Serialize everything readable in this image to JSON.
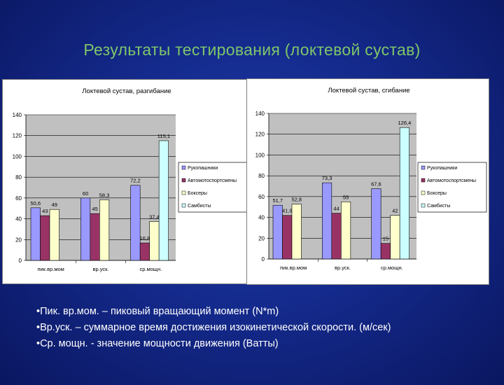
{
  "slide": {
    "title": "Результаты тестирования (локтевой сустав)"
  },
  "notes": [
    "•Пик. вр.мом. – пиковый вращающий момент (N*m)",
    "•Вр.уск. – суммарное время достижения изокинетической скорости. (м/сек)",
    "•Ср. мощн. -  значение мощности движения (Ватты)"
  ],
  "chart_data": [
    {
      "type": "bar",
      "title": "Локтевой сустав, разгибание",
      "categories": [
        "пик.вр.мом",
        "вр.уск.",
        "ср.мощн."
      ],
      "series": [
        {
          "name": "Рукопашники",
          "color": "#9999ff",
          "values": [
            50.6,
            60,
            72.2
          ],
          "labels": [
            "50,6",
            "60",
            "72,2"
          ]
        },
        {
          "name": "Автомотоспортсмены",
          "color": "#993366",
          "values": [
            43,
            45,
            16.8
          ],
          "labels": [
            "43",
            "45",
            "16,8"
          ]
        },
        {
          "name": "Боксеры",
          "color": "#ffffcc",
          "values": [
            49,
            58.3,
            37.4
          ],
          "labels": [
            "49",
            "58,3",
            "37,4"
          ]
        },
        {
          "name": "Самбисты",
          "color": "#ccffff",
          "values": [
            null,
            null,
            115.1
          ],
          "labels": [
            "",
            "",
            "115,1"
          ]
        }
      ],
      "yticks": [
        "0",
        "20",
        "40",
        "60",
        "80",
        "100",
        "120",
        "140"
      ],
      "ylim": [
        0,
        140
      ],
      "grid": true,
      "legend": "right"
    },
    {
      "type": "bar",
      "title": "Локтевой сустав, сгибание",
      "categories": [
        "пик.вр.мом",
        "вр.уск.",
        "ср.мощн."
      ],
      "series": [
        {
          "name": "Рукопашники",
          "color": "#9999ff",
          "values": [
            51.7,
            73.3,
            67.6
          ],
          "labels": [
            "51,7",
            "73,3",
            "67,6"
          ]
        },
        {
          "name": "Автомотоспортсмены",
          "color": "#993366",
          "values": [
            41.9,
            44,
            15
          ],
          "labels": [
            "41,9",
            "44",
            "15"
          ]
        },
        {
          "name": "Боксеры",
          "color": "#ffffcc",
          "values": [
            52.8,
            55,
            42
          ],
          "labels": [
            "52,8",
            "55",
            "42"
          ]
        },
        {
          "name": "Самбисты",
          "color": "#ccffff",
          "values": [
            null,
            null,
            126.4
          ],
          "labels": [
            "",
            "",
            "126,4"
          ]
        }
      ],
      "yticks": [
        "0",
        "20",
        "40",
        "60",
        "80",
        "100",
        "120",
        "140"
      ],
      "ylim": [
        0,
        140
      ],
      "grid": true,
      "legend": "right"
    }
  ]
}
